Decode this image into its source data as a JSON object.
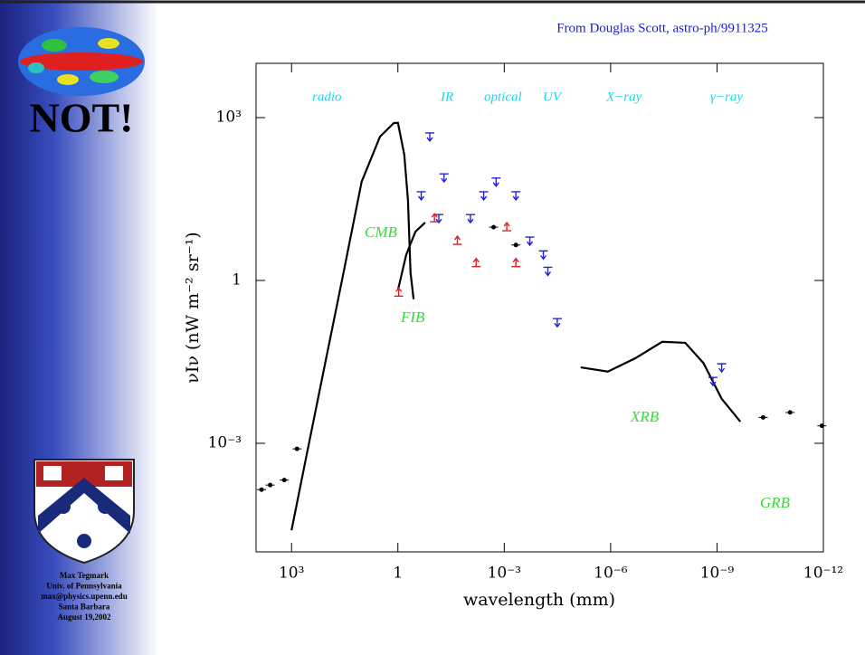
{
  "header": "From Douglas Scott, astro-ph/9911325",
  "sidebar": {
    "stamp": "NOT!",
    "credits": [
      "Max Tegmark",
      "Univ. of Pennsylvania",
      "max@physics.upenn.edu",
      "Santa Barbara",
      "August 19,2002"
    ]
  },
  "chart_data": {
    "type": "scatter",
    "log_x": true,
    "log_y": true,
    "xlabel": "wavelength (mm)",
    "ylabel": "νIν (nW m⁻² sr⁻¹)",
    "bands": [
      "radio",
      "IR",
      "optical",
      "UV",
      "X−ray",
      "γ−ray"
    ],
    "components": [
      "CMB",
      "FIB",
      "XRB",
      "GRB"
    ],
    "xlim": [
      10000,
      1e-12
    ],
    "ylim": [
      1e-05,
      10000
    ],
    "xticks": [
      {
        "value": 1000,
        "label": "10³"
      },
      1,
      {
        "value": 0.001,
        "label": "10⁻³"
      },
      {
        "value": 1e-06,
        "label": "10⁻⁶"
      },
      {
        "value": 1e-09,
        "label": "10⁻⁹"
      },
      {
        "value": 1e-12,
        "label": "10⁻¹²"
      }
    ],
    "yticks": [
      {
        "value": 0.001,
        "label": "10⁻³"
      },
      1,
      {
        "value": 1000,
        "label": "10³"
      }
    ],
    "series": [
      {
        "style": "line",
        "color": "#000000",
        "x": [
          1000,
          365,
          112,
          34,
          10.5,
          3.2,
          1.3,
          1,
          0.66,
          0.52,
          0.44,
          0.36
        ],
        "y": [
          2.5e-05,
          0.00066,
          0.03,
          1.4,
          66,
          447,
          794,
          800,
          208,
          30,
          1.4,
          0.45
        ]
      },
      {
        "style": "line",
        "color": "#000000",
        "x": [
          1,
          0.58,
          0.32,
          0.17
        ],
        "y": [
          0.66,
          3,
          7.9,
          11.7
        ]
      },
      {
        "style": "line",
        "color": "#000000",
        "x": [
          7e-06,
          1.2e-06,
          2e-07,
          3.5e-08,
          7.9e-09,
          2.4e-09,
          7.4e-10,
          2.2e-10
        ],
        "y": [
          0.025,
          0.021,
          0.037,
          0.074,
          0.071,
          0.03,
          0.0066,
          0.0025
        ]
      },
      {
        "style": "points",
        "marker": "dot",
        "color": "#000000",
        "x": [
          7000,
          4000,
          1600,
          700,
          0.002,
          0.00047,
          5e-11,
          8.7e-12,
          1.1e-12
        ],
        "y": [
          0.00014,
          0.00017,
          0.00021,
          0.00079,
          9.6,
          4.5,
          0.003,
          0.0037,
          0.0021
        ]
      },
      {
        "style": "points",
        "marker": "down-arrow",
        "color": "#2222dd",
        "x": [
          0.126,
          0.05,
          0.22,
          0.07,
          0.009,
          0.0038,
          0.0017,
          0.00047,
          0.00019,
          7.9e-05,
          5.9e-05,
          3.2e-05,
          1.3e-09,
          7.4e-10
        ],
        "y": [
          447,
          79,
          37,
          14,
          14,
          37,
          66,
          37,
          5.4,
          3,
          1.5,
          0.17,
          0.014,
          0.025
        ]
      },
      {
        "style": "points",
        "marker": "up-arrow",
        "color": "#dd2222",
        "x": [
          0.093,
          0.021,
          0.0062,
          0.00085,
          0.00047,
          0.95
        ],
        "y": [
          14,
          5.4,
          2.1,
          9.6,
          2.1,
          0.6
        ]
      }
    ]
  }
}
